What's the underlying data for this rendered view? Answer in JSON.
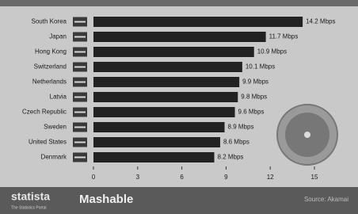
{
  "chart_data": {
    "type": "bar",
    "orientation": "horizontal",
    "categories": [
      "South Korea",
      "Japan",
      "Hong Kong",
      "Switzerland",
      "Netherlands",
      "Latvia",
      "Czech Republic",
      "Sweden",
      "United States",
      "Denmark"
    ],
    "values": [
      14.2,
      11.7,
      10.9,
      10.1,
      9.9,
      9.8,
      9.6,
      8.9,
      8.6,
      8.2
    ],
    "value_labels": [
      "14.2 Mbps",
      "11.7 Mbps",
      "10.9 Mbps",
      "10.1 Mbps",
      "9.9 Mbps",
      "9.8 Mbps",
      "9.6 Mbps",
      "8.9 Mbps",
      "8.6 Mbps",
      "8.2 Mbps"
    ],
    "color": "#222222",
    "xlim": [
      0,
      17
    ],
    "xticks": [
      0,
      3,
      6,
      9,
      12,
      15
    ]
  },
  "footer": {
    "brand": "statista",
    "tagline": "The Statistics Portal",
    "publisher": "Mashable",
    "source": "Source: Akamai"
  }
}
